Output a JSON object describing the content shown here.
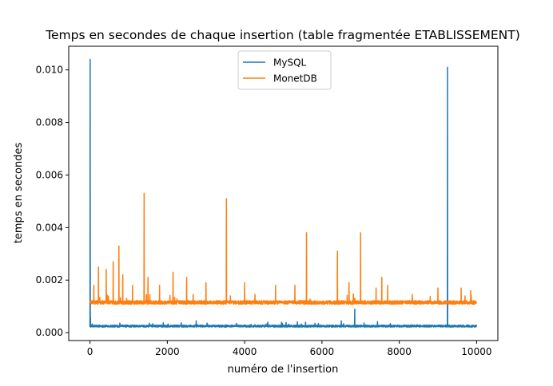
{
  "chart_data": {
    "type": "line",
    "title": "Temps en secondes de chaque insertion (table fragmentée ETABLISSEMENT)",
    "xlabel": "numéro de l'insertion",
    "ylabel": "temps en secondes",
    "xlim": [
      -550,
      10550
    ],
    "ylim": [
      -0.0003,
      0.0109
    ],
    "x_ticks": [
      0,
      2000,
      4000,
      6000,
      8000,
      10000
    ],
    "x_tick_labels": [
      "0",
      "2000",
      "4000",
      "6000",
      "8000",
      "10000"
    ],
    "y_ticks": [
      0.0,
      0.002,
      0.004,
      0.006,
      0.008,
      0.01
    ],
    "y_tick_labels": [
      "0.000",
      "0.002",
      "0.004",
      "0.006",
      "0.008",
      "0.010"
    ],
    "grid": false,
    "legend": "upper center",
    "series": [
      {
        "name": "MySQL",
        "color": "#1f77b4",
        "baseline": 0.00025,
        "noise": 4e-05,
        "n": 10000,
        "spikes": [
          {
            "x": 5,
            "y": 0.0104
          },
          {
            "x": 15,
            "y": 0.0006
          },
          {
            "x": 2750,
            "y": 0.00045
          },
          {
            "x": 4600,
            "y": 0.0004
          },
          {
            "x": 6500,
            "y": 0.00045
          },
          {
            "x": 6850,
            "y": 0.0009
          },
          {
            "x": 9250,
            "y": 0.0101
          }
        ]
      },
      {
        "name": "MonetDB",
        "color": "#ff7f0e",
        "baseline": 0.00115,
        "noise": 7e-05,
        "n": 10000,
        "spikes": [
          {
            "x": 100,
            "y": 0.0018
          },
          {
            "x": 220,
            "y": 0.0025
          },
          {
            "x": 420,
            "y": 0.0024
          },
          {
            "x": 600,
            "y": 0.0027
          },
          {
            "x": 750,
            "y": 0.0033
          },
          {
            "x": 850,
            "y": 0.0022
          },
          {
            "x": 1100,
            "y": 0.0018
          },
          {
            "x": 1400,
            "y": 0.0053
          },
          {
            "x": 1500,
            "y": 0.0021
          },
          {
            "x": 1800,
            "y": 0.0018
          },
          {
            "x": 2150,
            "y": 0.0023
          },
          {
            "x": 2500,
            "y": 0.0021
          },
          {
            "x": 3000,
            "y": 0.0019
          },
          {
            "x": 3530,
            "y": 0.0051
          },
          {
            "x": 4000,
            "y": 0.0019
          },
          {
            "x": 4800,
            "y": 0.0018
          },
          {
            "x": 5300,
            "y": 0.0018
          },
          {
            "x": 5600,
            "y": 0.0038
          },
          {
            "x": 6400,
            "y": 0.0031
          },
          {
            "x": 6700,
            "y": 0.0019
          },
          {
            "x": 7000,
            "y": 0.0038
          },
          {
            "x": 7400,
            "y": 0.0017
          },
          {
            "x": 7550,
            "y": 0.0021
          },
          {
            "x": 7700,
            "y": 0.0018
          },
          {
            "x": 9000,
            "y": 0.0017
          },
          {
            "x": 9600,
            "y": 0.0017
          },
          {
            "x": 9850,
            "y": 0.0016
          }
        ]
      }
    ]
  }
}
